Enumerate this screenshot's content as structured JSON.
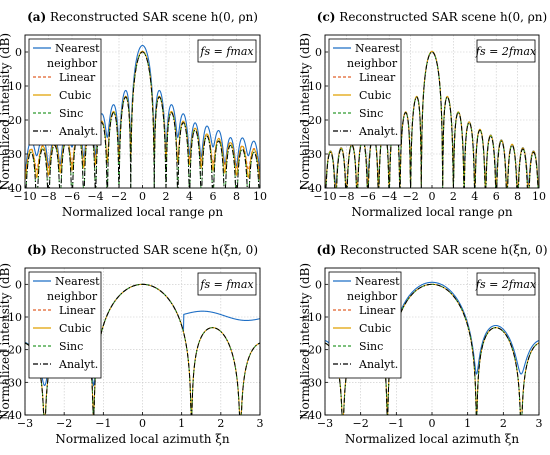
{
  "figure": {
    "colors": {
      "nearest": "#1f6fc5",
      "linear": "#e0622a",
      "cubic": "#e0a000",
      "sinc": "#2e9a2e",
      "analyt": "#000000"
    }
  },
  "chart_data": [
    {
      "id": "a",
      "type": "line",
      "panel_label": "(a)",
      "title": "Reconstructed SAR scene h(0, ρn)",
      "xlabel": "Normalized local range ρn",
      "ylabel": "Normalized intensity (dB)",
      "fs_label": "fs = fmax",
      "xlim": [
        -10,
        10
      ],
      "ylim": [
        -40,
        5
      ],
      "xticks": [
        -10,
        -8,
        -6,
        -4,
        -2,
        0,
        2,
        4,
        6,
        8,
        10
      ],
      "xtick_labels": [
        "−10",
        "−8",
        "−6",
        "−4",
        "−2",
        "0",
        "2",
        "4",
        "6",
        "8",
        "10"
      ],
      "yticks": [
        -40,
        -30,
        -20,
        -10,
        0
      ],
      "ytick_labels": [
        "−40",
        "−30",
        "−20",
        "−10",
        "0"
      ],
      "grid": true,
      "legend": {
        "position": "top-left",
        "entries": [
          "Nearest neighbor",
          "Linear",
          "Cubic",
          "Sinc",
          "Analyt."
        ]
      },
      "series": [
        {
          "name": "Nearest neighbor",
          "key": "nearest",
          "note": "sinc-squared mainlobe at x=0 peaking near 2 dB; sidelobes about -11 to -28 dB"
        },
        {
          "name": "Linear",
          "key": "linear",
          "note": "sinc-squared mainlobe; sidelobes about -13 to -33 dB"
        },
        {
          "name": "Cubic",
          "key": "cubic",
          "note": "sinc-squared mainlobe; sidelobes about -13 to -33 dB"
        },
        {
          "name": "Sinc",
          "key": "sinc",
          "note": "follows analytical curve"
        },
        {
          "name": "Analyt.",
          "key": "analyt",
          "note": "ideal sinc-squared response, nulls at integer x"
        }
      ]
    },
    {
      "id": "c",
      "type": "line",
      "panel_label": "(c)",
      "title": "Reconstructed SAR scene h(0, ρn)",
      "xlabel": "Normalized local range ρn",
      "ylabel": "Normalized intensity (dB)",
      "fs_label": "fs = 2fmax",
      "xlim": [
        -10,
        10
      ],
      "ylim": [
        -40,
        5
      ],
      "xticks": [
        -10,
        -8,
        -6,
        -4,
        -2,
        0,
        2,
        4,
        6,
        8,
        10
      ],
      "xtick_labels": [
        "−10",
        "−8",
        "−6",
        "−4",
        "−2",
        "0",
        "2",
        "4",
        "6",
        "8",
        "10"
      ],
      "yticks": [
        -40,
        -30,
        -20,
        -10,
        0
      ],
      "ytick_labels": [
        "−40",
        "−30",
        "−20",
        "−10",
        "0"
      ],
      "grid": true,
      "legend": {
        "position": "top-left",
        "entries": [
          "Nearest neighbor",
          "Linear",
          "Cubic",
          "Sinc",
          "Analyt."
        ]
      },
      "series": [
        {
          "name": "Nearest neighbor",
          "key": "nearest",
          "note": "close to analytical; sidelobes slightly raised"
        },
        {
          "name": "Linear",
          "key": "linear"
        },
        {
          "name": "Cubic",
          "key": "cubic"
        },
        {
          "name": "Sinc",
          "key": "sinc"
        },
        {
          "name": "Analyt.",
          "key": "analyt"
        }
      ]
    },
    {
      "id": "b",
      "type": "line",
      "panel_label": "(b)",
      "title": "Reconstructed SAR scene h(ξn, 0)",
      "xlabel": "Normalized local azimuth ξn",
      "ylabel": "Normalized intensity (dB)",
      "fs_label": "fs = fmax",
      "xlim": [
        -3,
        3
      ],
      "ylim": [
        -40,
        5
      ],
      "xticks": [
        -3,
        -2,
        -1,
        0,
        1,
        2,
        3
      ],
      "xtick_labels": [
        "−3",
        "−2",
        "−1",
        "0",
        "1",
        "2",
        "3"
      ],
      "yticks": [
        -40,
        -30,
        -20,
        -10,
        0
      ],
      "ytick_labels": [
        "−40",
        "−30",
        "−20",
        "−10",
        "0"
      ],
      "grid": true,
      "legend": {
        "position": "top-left",
        "entries": [
          "Nearest neighbor",
          "Linear",
          "Cubic",
          "Sinc",
          "Analyt."
        ]
      },
      "series": [
        {
          "name": "Nearest neighbor",
          "key": "nearest",
          "note": "mainlobe to about x=±1.2 then flat plateau near -9 to -11 dB on the right"
        },
        {
          "name": "Linear",
          "key": "linear",
          "note": "mainlobe, nulls near ±1.25 and ±2.3, sidelobes about -14 and -21 dB"
        },
        {
          "name": "Cubic",
          "key": "cubic"
        },
        {
          "name": "Sinc",
          "key": "sinc"
        },
        {
          "name": "Analyt.",
          "key": "analyt"
        }
      ]
    },
    {
      "id": "d",
      "type": "line",
      "panel_label": "(d)",
      "title": "Reconstructed SAR scene h(ξn, 0)",
      "xlabel": "Normalized local azimuth ξn",
      "ylabel": "Normalized intensity (dB)",
      "fs_label": "fs = 2fmax",
      "xlim": [
        -3,
        3
      ],
      "ylim": [
        -40,
        5
      ],
      "xticks": [
        -3,
        -2,
        -1,
        0,
        1,
        2,
        3
      ],
      "xtick_labels": [
        "−3",
        "−2",
        "−1",
        "0",
        "1",
        "2",
        "3"
      ],
      "yticks": [
        -40,
        -30,
        -20,
        -10,
        0
      ],
      "ytick_labels": [
        "−40",
        "−30",
        "−20",
        "−10",
        "0"
      ],
      "grid": true,
      "legend": {
        "position": "top-left",
        "entries": [
          "Nearest neighbor",
          "Linear",
          "Cubic",
          "Sinc",
          "Analyt."
        ]
      },
      "series": [
        {
          "name": "Nearest neighbor",
          "key": "nearest",
          "note": "sidelobes near -15 to -21 dB"
        },
        {
          "name": "Linear",
          "key": "linear"
        },
        {
          "name": "Cubic",
          "key": "cubic"
        },
        {
          "name": "Sinc",
          "key": "sinc"
        },
        {
          "name": "Analyt.",
          "key": "analyt"
        }
      ]
    }
  ]
}
